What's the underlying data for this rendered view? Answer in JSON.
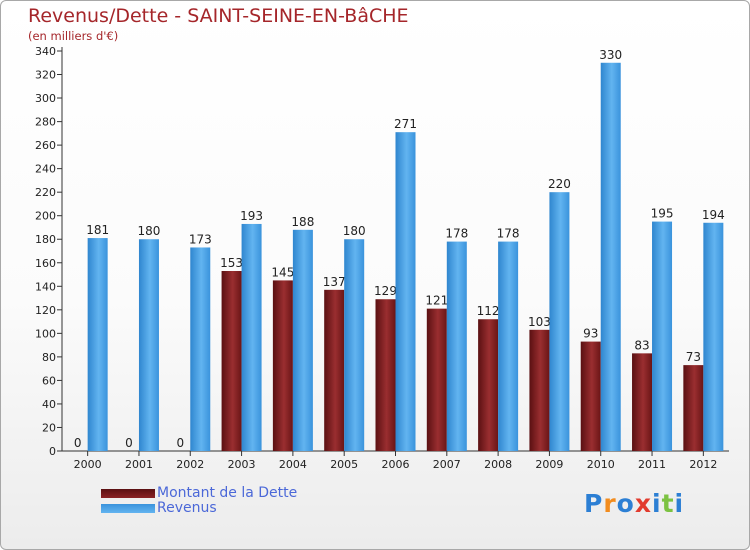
{
  "title": "Revenus/Dette - SAINT-SEINE-EN-BâCHE",
  "subtitle": "(en milliers d'€)",
  "colors": {
    "background": "#ffffff",
    "title": "#a5262a",
    "legend_text": "#4b68d8",
    "axis": "#333333",
    "dette": "#7b1d1e",
    "revenus": "#4a9fe0"
  },
  "chart_data": {
    "type": "bar",
    "title": "Revenus/Dette - SAINT-SEINE-EN-BâCHE",
    "subtitle": "(en milliers d'€)",
    "xlabel": "",
    "ylabel": "",
    "ylim": [
      0,
      340
    ],
    "ytick_step": 20,
    "grid": false,
    "legend_position": "bottom-left",
    "categories": [
      "2000",
      "2001",
      "2002",
      "2003",
      "2004",
      "2005",
      "2006",
      "2007",
      "2008",
      "2009",
      "2010",
      "2011",
      "2012"
    ],
    "series": [
      {
        "name": "Montant de la Dette",
        "color": "#7b1d1e",
        "values": [
          0,
          0,
          0,
          153,
          145,
          137,
          129,
          121,
          112,
          103,
          93,
          83,
          73
        ]
      },
      {
        "name": "Revenus",
        "color": "#4a9fe0",
        "values": [
          181,
          180,
          173,
          193,
          188,
          180,
          271,
          178,
          178,
          220,
          330,
          195,
          194
        ]
      }
    ]
  },
  "logo": {
    "letters": [
      "P",
      "r",
      "o",
      "x",
      "i",
      "t",
      "i"
    ],
    "colors": [
      "#2c7fd4",
      "#f28c1e",
      "#2c7fd4",
      "#e23b2e",
      "#2c7fd4",
      "#7cc242",
      "#2c7fd4"
    ]
  }
}
